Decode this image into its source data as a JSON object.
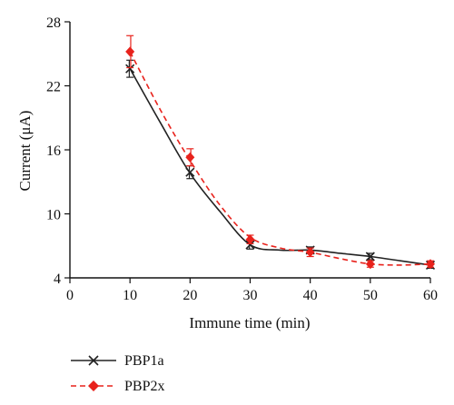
{
  "chart_data": {
    "type": "line",
    "xlabel": "Immune time (min)",
    "ylabel": "Current (μA)",
    "xlim": [
      0,
      60
    ],
    "ylim": [
      4,
      28
    ],
    "xticks": [
      0,
      10,
      20,
      30,
      40,
      50,
      60
    ],
    "yticks": [
      4,
      10,
      16,
      22,
      28
    ],
    "grid": false,
    "legend_position": "bottom-left",
    "series": [
      {
        "name": "PBP1a",
        "color": "#222222",
        "marker": "x",
        "line_style": "solid",
        "x": [
          10,
          20,
          30,
          40,
          50,
          60
        ],
        "y": [
          23.6,
          13.9,
          7.1,
          6.6,
          6.0,
          5.2
        ],
        "error": [
          0.8,
          0.6,
          0.4,
          0.3,
          0.3,
          0.3
        ],
        "curve_x": [
          10,
          15,
          20,
          25,
          30,
          35,
          40,
          45,
          50,
          55,
          60
        ],
        "curve_y": [
          23.6,
          18.6,
          13.8,
          10.2,
          7.1,
          6.6,
          6.6,
          6.3,
          6.0,
          5.6,
          5.2
        ]
      },
      {
        "name": "PBP2x",
        "color": "#e8221c",
        "marker": "diamond",
        "line_style": "dashed",
        "x": [
          10,
          20,
          30,
          40,
          50,
          60
        ],
        "y": [
          25.2,
          15.3,
          7.6,
          6.4,
          5.3,
          5.3
        ],
        "error": [
          1.5,
          0.8,
          0.4,
          0.4,
          0.3,
          0.3
        ],
        "curve_x": [
          10,
          15,
          20,
          25,
          30,
          35,
          40,
          45,
          50,
          55,
          60
        ],
        "curve_y": [
          25.2,
          19.8,
          15.0,
          10.8,
          7.8,
          6.8,
          6.4,
          5.8,
          5.3,
          5.2,
          5.3
        ]
      }
    ]
  }
}
